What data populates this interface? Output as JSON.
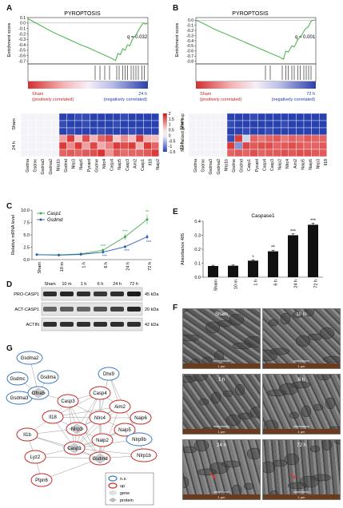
{
  "panels": {
    "A": "A",
    "B": "B",
    "C": "C",
    "D": "D",
    "E": "E",
    "F": "F",
    "G": "G"
  },
  "gsea_a": {
    "title": "PYROPTOSIS",
    "ylabel": "Enrichment score",
    "yticks": [
      "0.1",
      "0.0",
      "-0.1",
      "-0.2",
      "-0.3",
      "-0.4",
      "-0.5",
      "-0.6",
      "-0.7"
    ],
    "q": "q = 0.032",
    "left_label_1": "Sham",
    "left_label_2": "(positively correlated)",
    "right_label_1": "24 h",
    "right_label_2": "(negatively correlated)",
    "curve": [
      [
        0,
        0.08
      ],
      [
        0.05,
        0.02
      ],
      [
        0.1,
        -0.04
      ],
      [
        0.15,
        -0.1
      ],
      [
        0.2,
        -0.16
      ],
      [
        0.25,
        -0.21
      ],
      [
        0.3,
        -0.26
      ],
      [
        0.35,
        -0.31
      ],
      [
        0.4,
        -0.36
      ],
      [
        0.45,
        -0.41
      ],
      [
        0.5,
        -0.45
      ],
      [
        0.55,
        -0.5
      ],
      [
        0.6,
        -0.55
      ],
      [
        0.65,
        -0.6
      ],
      [
        0.7,
        -0.65
      ],
      [
        0.73,
        -0.69
      ],
      [
        0.75,
        -0.56
      ],
      [
        0.77,
        -0.58
      ],
      [
        0.79,
        -0.47
      ],
      [
        0.81,
        -0.5
      ],
      [
        0.83,
        -0.4
      ],
      [
        0.85,
        -0.42
      ],
      [
        0.87,
        -0.3
      ],
      [
        0.9,
        -0.22
      ],
      [
        0.93,
        -0.1
      ],
      [
        0.96,
        0.0
      ],
      [
        0.98,
        -0.02
      ],
      [
        1.0,
        0.0
      ]
    ],
    "ticks": [
      0.56,
      0.6,
      0.64,
      0.68,
      0.74,
      0.76,
      0.79,
      0.81,
      0.83,
      0.86,
      0.88,
      0.9,
      0.92,
      0.95,
      0.97
    ]
  },
  "gsea_b": {
    "title": "PYROPTOSIS",
    "ylabel": "Enrichment score",
    "yticks": [
      "0.0",
      "-0.1",
      "-0.2",
      "-0.3",
      "-0.4",
      "-0.5",
      "-0.6",
      "-0.7",
      "-0.8"
    ],
    "q": "q = 0.001",
    "left_label_1": "Sham",
    "left_label_2": "(positively correlated)",
    "right_label_1": "72 h",
    "right_label_2": "(negatively correlated)",
    "curve": [
      [
        0,
        0.0
      ],
      [
        0.05,
        -0.05
      ],
      [
        0.1,
        -0.11
      ],
      [
        0.15,
        -0.17
      ],
      [
        0.2,
        -0.22
      ],
      [
        0.25,
        -0.27
      ],
      [
        0.3,
        -0.32
      ],
      [
        0.35,
        -0.37
      ],
      [
        0.4,
        -0.42
      ],
      [
        0.45,
        -0.47
      ],
      [
        0.5,
        -0.52
      ],
      [
        0.55,
        -0.57
      ],
      [
        0.6,
        -0.62
      ],
      [
        0.65,
        -0.67
      ],
      [
        0.7,
        -0.72
      ],
      [
        0.73,
        -0.76
      ],
      [
        0.75,
        -0.6
      ],
      [
        0.77,
        -0.62
      ],
      [
        0.8,
        -0.5
      ],
      [
        0.82,
        -0.52
      ],
      [
        0.85,
        -0.38
      ],
      [
        0.88,
        -0.3
      ],
      [
        0.91,
        -0.18
      ],
      [
        0.94,
        -0.12
      ],
      [
        0.96,
        -0.02
      ],
      [
        0.98,
        0.0
      ],
      [
        1.0,
        0.0
      ]
    ],
    "ticks": [
      0.58,
      0.62,
      0.72,
      0.75,
      0.77,
      0.8,
      0.82,
      0.85,
      0.87,
      0.9,
      0.92,
      0.94,
      0.96
    ]
  },
  "heatmap_a": {
    "row_labels": [
      "Sham",
      "24 h"
    ],
    "genes": [
      "Gsdma",
      "Gsdmc",
      "Gsdma3",
      "Gsdma2",
      "Nlrp1b",
      "Gsdmd",
      "Nlrp3",
      "Naip6",
      "Pycard",
      "Gsdme",
      "Nlrc4",
      "Casp4",
      "Naip5",
      "Casp3",
      "Aim2",
      "Casp1",
      "Il18",
      "Naip2"
    ],
    "legend_ticks": [
      "2",
      "1.5",
      "1",
      "0.5",
      "0",
      "-0.5",
      "-1",
      "-1.5"
    ],
    "legend_label": "Normalized gene exp",
    "values": [
      [
        0,
        0,
        0,
        0,
        0,
        -1.6,
        -1.6,
        -1.5,
        -1.5,
        -1.6,
        -1.6,
        -1.6,
        -1.6,
        -1.5,
        -1.6,
        -1.6,
        -1.6,
        -1.6
      ],
      [
        0,
        0,
        0,
        0,
        0,
        -1.5,
        -1.6,
        -1.6,
        -1.5,
        -1.6,
        -1.6,
        -1.6,
        -1.5,
        -1.6,
        -1.6,
        -1.6,
        -1.6,
        -1.6
      ],
      [
        0,
        0,
        0,
        0,
        0,
        -1.6,
        -1.5,
        -1.6,
        -1.6,
        -1.6,
        -1.5,
        -1.6,
        -1.6,
        -1.6,
        -1.5,
        -1.6,
        -1.6,
        -1.6
      ],
      [
        0,
        0,
        0,
        0,
        0,
        0.6,
        1.6,
        0.3,
        1.4,
        0.4,
        1.2,
        1.5,
        0.2,
        0.8,
        0.3,
        1.6,
        0.4,
        0.3
      ],
      [
        0,
        0,
        0,
        0,
        0,
        1.6,
        0.8,
        1.6,
        0.6,
        1.5,
        0.5,
        0.9,
        1.6,
        1.4,
        1.6,
        0.4,
        1.6,
        1.2
      ],
      [
        0,
        0,
        0,
        0,
        0,
        1.2,
        1.3,
        1.2,
        1.3,
        1.4,
        1.7,
        0.7,
        1.3,
        1.1,
        1.2,
        1.2,
        1.3,
        1.6
      ]
    ]
  },
  "heatmap_b": {
    "row_labels": [
      "Sham",
      "72 h"
    ],
    "genes": [
      "Gsdma",
      "Gsdmc",
      "Gsdma3",
      "Gsdma2",
      "Nlrp1b",
      "Gsdme",
      "Gsdmd",
      "Casp1",
      "Pycard",
      "Casp4",
      "Casp3",
      "Naip2",
      "Nlrc4",
      "Aim2",
      "Naip5",
      "Naip6",
      "Nlrp3",
      "Il18"
    ],
    "values": [
      [
        0,
        0,
        0,
        0,
        0,
        -1.6,
        -1.6,
        -1.6,
        -1.5,
        -1.6,
        -1.6,
        -1.6,
        -1.6,
        -1.6,
        -1.6,
        -1.6,
        -1.6,
        -1.6
      ],
      [
        0,
        0,
        0,
        0,
        0,
        -1.5,
        -1.6,
        -1.6,
        -1.6,
        -1.6,
        -1.6,
        -1.6,
        -1.5,
        -1.6,
        -1.6,
        -1.6,
        -1.6,
        -1.6
      ],
      [
        0,
        0,
        0,
        0,
        0,
        -1.6,
        -1.6,
        -1.5,
        -1.6,
        -1.6,
        -1.5,
        -1.6,
        -1.6,
        -1.6,
        -1.6,
        -1.6,
        -1.6,
        -1.6
      ],
      [
        0,
        0,
        0,
        0,
        0,
        -1.5,
        1.6,
        -0.2,
        1.2,
        1.0,
        1.2,
        1.3,
        1.0,
        1.2,
        1.1,
        1.3,
        1.2,
        1.2
      ],
      [
        0,
        0,
        0,
        0,
        0,
        1.6,
        -0.8,
        1.5,
        1.3,
        1.4,
        1.4,
        1.2,
        1.3,
        1.4,
        1.3,
        1.2,
        1.2,
        1.3
      ],
      [
        0,
        0,
        0,
        0,
        0,
        1.2,
        1.3,
        1.2,
        1.4,
        1.2,
        1.3,
        1.3,
        1.4,
        1.3,
        1.4,
        1.4,
        1.3,
        1.3
      ]
    ]
  },
  "chart_data": [
    {
      "type": "line",
      "title": "",
      "xlabel": "",
      "ylabel": "Relative mRNA level",
      "categories": [
        "Sham",
        "10 m",
        "1 h",
        "6 h",
        "24 h",
        "72 h"
      ],
      "ylim": [
        0,
        10
      ],
      "yticks": [
        "0.0",
        "2.5",
        "5.0",
        "7.5",
        "10.0"
      ],
      "series": [
        {
          "name": "Casp1",
          "color": "#3dae49",
          "values": [
            1.0,
            0.95,
            1.15,
            1.9,
            4.6,
            8.1
          ],
          "err": [
            0.1,
            0.1,
            0.15,
            0.3,
            0.6,
            1.0
          ],
          "sig": [
            "",
            "",
            "",
            "***",
            "***",
            "**"
          ]
        },
        {
          "name": "Gsdmd",
          "color": "#2b5fb3",
          "values": [
            1.0,
            0.9,
            1.05,
            1.5,
            2.6,
            4.6
          ],
          "err": [
            0.1,
            0.1,
            0.1,
            0.2,
            0.3,
            0.5
          ],
          "sig": [
            "",
            "",
            "",
            "***",
            "***",
            "***"
          ]
        }
      ]
    },
    {
      "type": "bar",
      "title": "Caspase1",
      "xlabel": "",
      "ylabel": "Absorbance 405",
      "categories": [
        "Sham",
        "10 m",
        "1 h",
        "6 h",
        "24 h",
        "72 h"
      ],
      "ylim": [
        0,
        0.4
      ],
      "yticks": [
        "0.0",
        "0.1",
        "0.2",
        "0.3",
        "0.4"
      ],
      "values": [
        0.08,
        0.082,
        0.118,
        0.185,
        0.3,
        0.375
      ],
      "err": [
        0.005,
        0.005,
        0.006,
        0.008,
        0.01,
        0.012
      ],
      "sig": [
        "",
        "",
        "*",
        "**",
        "***",
        "***"
      ]
    }
  ],
  "western": {
    "lanes": [
      "Sham",
      "10 m",
      "1 h",
      "6 h",
      "24 h",
      "72 h"
    ],
    "rows": [
      {
        "label": "PRO-CASP1",
        "kda": "45 kDa",
        "intensity": [
          0.85,
          0.9,
          0.85,
          0.8,
          0.85,
          0.95
        ]
      },
      {
        "label": "ACT-CASP1",
        "kda": "20 kDa",
        "intensity": [
          0.55,
          0.6,
          0.55,
          0.65,
          0.75,
          0.9
        ]
      },
      {
        "label": "ACTIN",
        "kda": "42 kDa",
        "intensity": [
          0.85,
          0.85,
          0.85,
          0.85,
          0.85,
          0.85
        ]
      }
    ]
  },
  "em": {
    "labels": [
      "Sham",
      "10 m",
      "1 h",
      "6 h",
      "24 h",
      "72 h"
    ],
    "scale": "1 μm"
  },
  "network": {
    "nodes": [
      {
        "id": "Gsdma2",
        "label": "Gsdma2",
        "kind": "ns"
      },
      {
        "id": "Gsdmc",
        "label": "Gsdmc",
        "kind": "ns"
      },
      {
        "id": "Gsdma",
        "label": "Gsdma",
        "kind": "ns"
      },
      {
        "id": "Gsdma3",
        "label": "Gsdma3",
        "kind": "ns"
      },
      {
        "id": "Dfna5",
        "label": "Dfna5",
        "kind": "ns-protein"
      },
      {
        "id": "Dhx9",
        "label": "Dhx9",
        "kind": "ns"
      },
      {
        "id": "Casp4",
        "label": "Casp4",
        "kind": "up"
      },
      {
        "id": "Casp3",
        "label": "Casp3",
        "kind": "up"
      },
      {
        "id": "Aim2",
        "label": "Aim2",
        "kind": "up"
      },
      {
        "id": "Il18",
        "label": "Il18",
        "kind": "up"
      },
      {
        "id": "Nlrc4",
        "label": "Nlrc4",
        "kind": "up"
      },
      {
        "id": "Naip6",
        "label": "Naip6",
        "kind": "up"
      },
      {
        "id": "Nlrp3",
        "label": "Nlrp3",
        "kind": "up-protein"
      },
      {
        "id": "Il1b",
        "label": "Il1b",
        "kind": "up"
      },
      {
        "id": "Naip5",
        "label": "Naip5",
        "kind": "up"
      },
      {
        "id": "Nlrp9b",
        "label": "Nlrp9b",
        "kind": "ns"
      },
      {
        "id": "Naip2",
        "label": "Naip2",
        "kind": "up"
      },
      {
        "id": "Casp1",
        "label": "Casp1",
        "kind": "up-protein"
      },
      {
        "id": "Nlrp1b",
        "label": "Nlrp1b",
        "kind": "up"
      },
      {
        "id": "Lyz2",
        "label": "Lyz2",
        "kind": "up"
      },
      {
        "id": "Gsdmd",
        "label": "Gsdmd",
        "kind": "up-protein"
      },
      {
        "id": "Ptpn6",
        "label": "Ptpn6",
        "kind": "up"
      }
    ],
    "legend": {
      "ns": "n.s.",
      "up": "up",
      "gene": "gene",
      "protein": "protein"
    }
  }
}
